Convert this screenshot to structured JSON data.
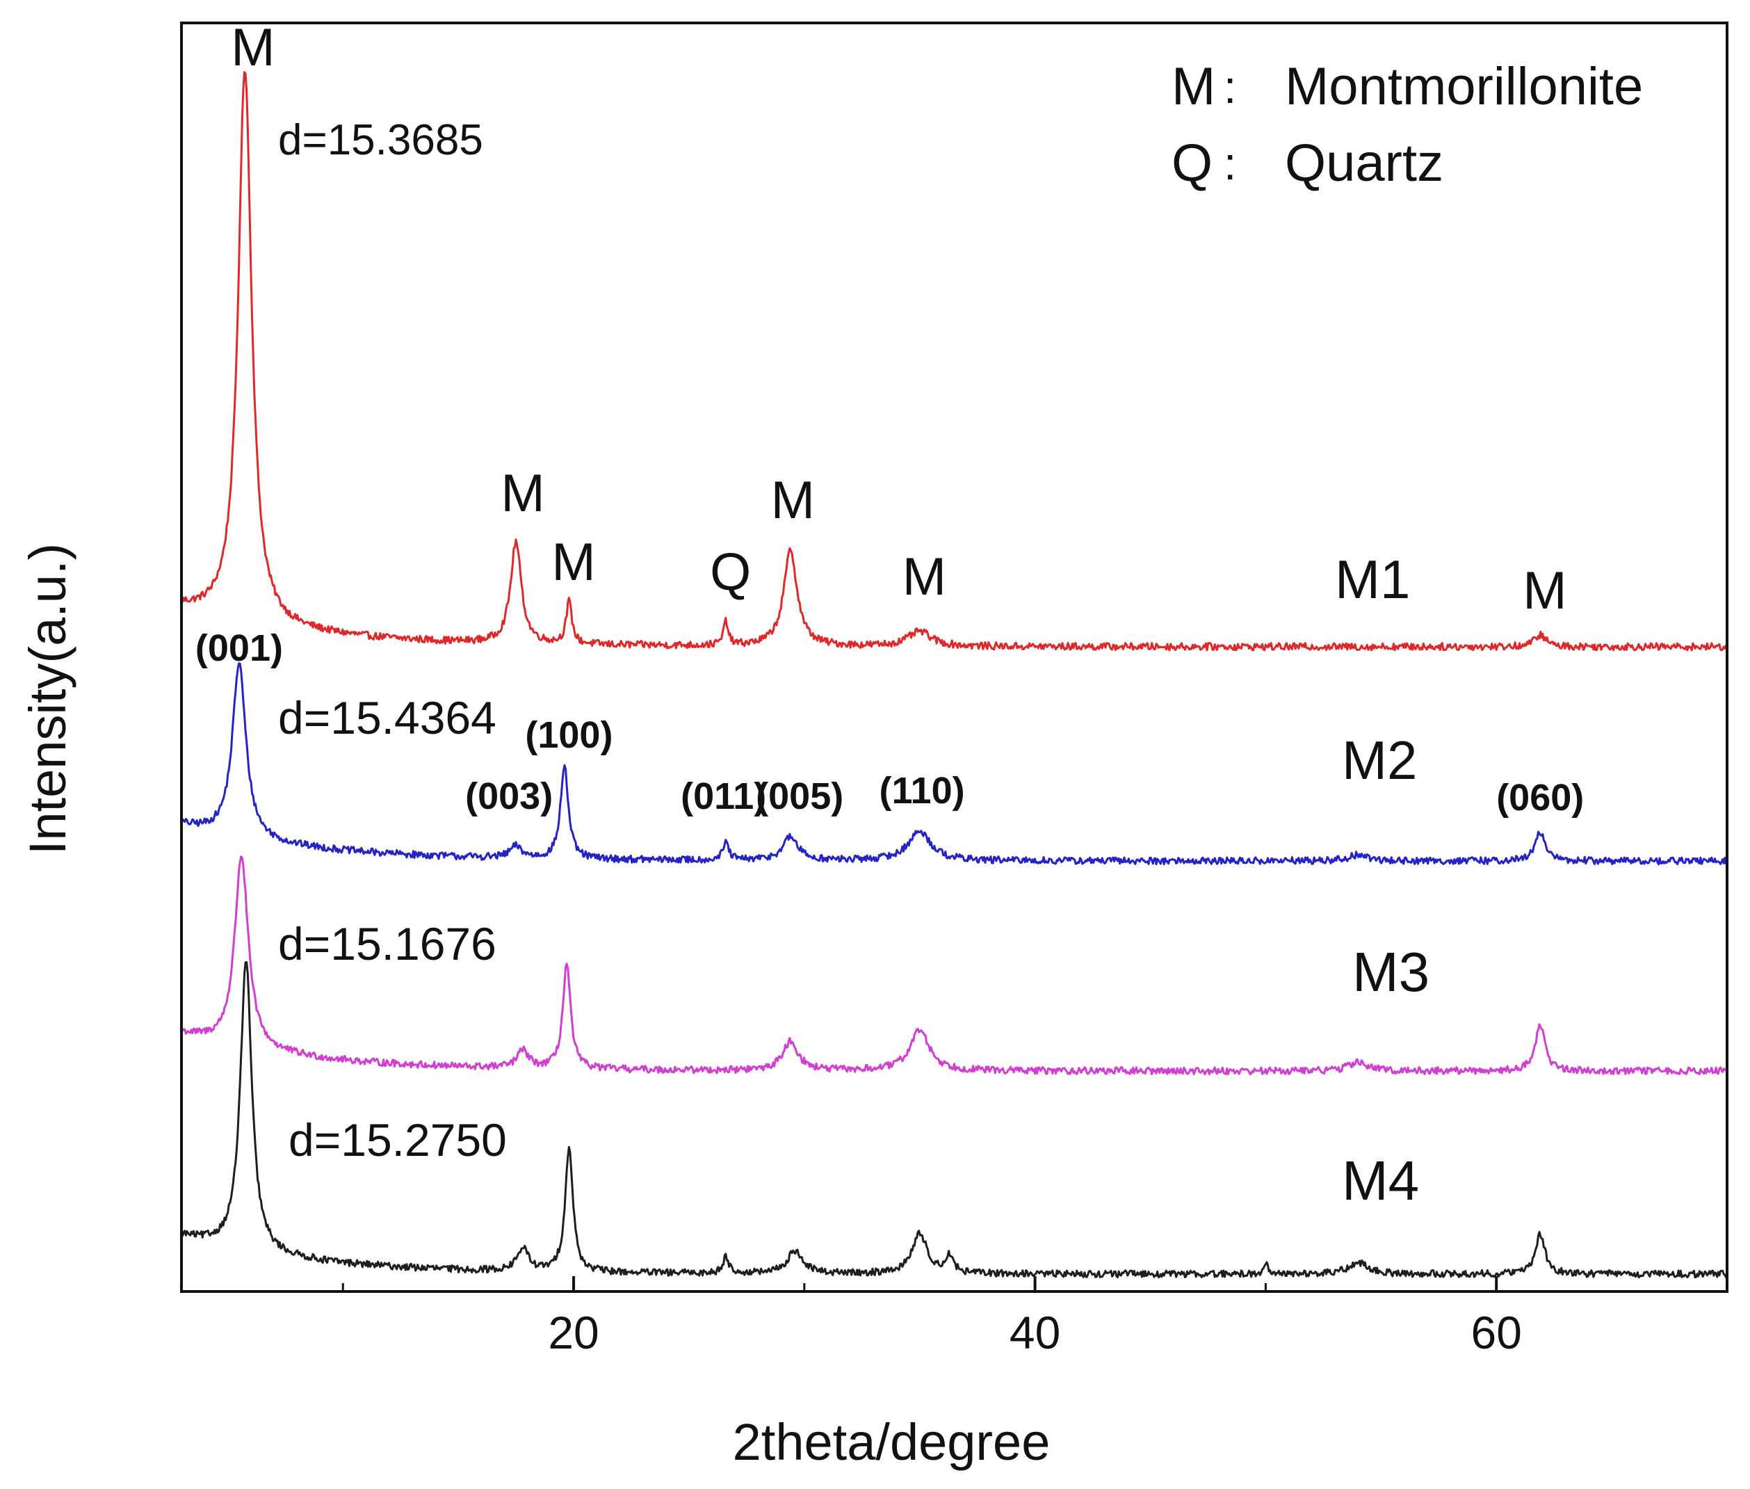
{
  "chart_data": {
    "type": "line",
    "title": "",
    "xlabel": "2theta/degree",
    "ylabel": "Intensity(a.u.)",
    "xlim": [
      3,
      70
    ],
    "x_ticks": [
      20,
      40,
      60
    ],
    "x_minor_ticks": [
      10,
      30,
      50
    ],
    "legend": {
      "placement": "top-right",
      "entries": [
        {
          "symbol": "M",
          "sep": ":",
          "name": "Montmorillonite"
        },
        {
          "symbol": "Q",
          "sep": ":",
          "name": "Quartz"
        }
      ]
    },
    "series": [
      {
        "name": "M1",
        "color": "#e0282a",
        "baseline": 0.07,
        "d_spacing": "d=15.3685",
        "peaks": [
          {
            "x": 5.75,
            "h": 0.93,
            "w": 0.35
          },
          {
            "x": 17.5,
            "h": 0.17,
            "w": 0.28
          },
          {
            "x": 19.8,
            "h": 0.07,
            "w": 0.15
          },
          {
            "x": 26.6,
            "h": 0.04,
            "w": 0.12
          },
          {
            "x": 29.4,
            "h": 0.16,
            "w": 0.35
          },
          {
            "x": 35.0,
            "h": 0.025,
            "w": 0.6
          },
          {
            "x": 61.9,
            "h": 0.02,
            "w": 0.3
          }
        ],
        "peak_labels": [
          {
            "text": "M",
            "x": 6.1
          },
          {
            "text": "M",
            "x": 17.8
          },
          {
            "text": "M",
            "x": 20.0
          },
          {
            "text": "Q",
            "x": 26.8
          },
          {
            "text": "M",
            "x": 29.5
          },
          {
            "text": "M",
            "x": 35.2
          },
          {
            "text": "M",
            "x": 62.1
          }
        ]
      },
      {
        "name": "M2",
        "color": "#2323c8",
        "baseline": 0.07,
        "d_spacing": "d=15.4364",
        "peaks": [
          {
            "x": 5.5,
            "h": 0.3,
            "w": 0.35
          },
          {
            "x": 17.5,
            "h": 0.02,
            "w": 0.3
          },
          {
            "x": 19.6,
            "h": 0.16,
            "w": 0.2
          },
          {
            "x": 26.6,
            "h": 0.03,
            "w": 0.15
          },
          {
            "x": 29.4,
            "h": 0.04,
            "w": 0.4
          },
          {
            "x": 35.0,
            "h": 0.05,
            "w": 0.6
          },
          {
            "x": 54.0,
            "h": 0.01,
            "w": 0.5
          },
          {
            "x": 61.9,
            "h": 0.05,
            "w": 0.25
          }
        ],
        "peak_labels": [
          {
            "text": "(001)",
            "x": 5.5
          },
          {
            "text": "(003)",
            "x": 17.2
          },
          {
            "text": "(100)",
            "x": 19.8
          },
          {
            "text": "(011)",
            "x": 26.5
          },
          {
            "text": "(005)",
            "x": 29.8
          },
          {
            "text": "(110)",
            "x": 35.1
          },
          {
            "text": "(060)",
            "x": 61.9
          }
        ]
      },
      {
        "name": "M3",
        "color": "#d23ed2",
        "baseline": 0.07,
        "d_spacing": "d=15.1676",
        "peaks": [
          {
            "x": 5.6,
            "h": 0.33,
            "w": 0.35
          },
          {
            "x": 17.8,
            "h": 0.03,
            "w": 0.3
          },
          {
            "x": 19.7,
            "h": 0.18,
            "w": 0.2
          },
          {
            "x": 29.4,
            "h": 0.05,
            "w": 0.4
          },
          {
            "x": 35.0,
            "h": 0.07,
            "w": 0.5
          },
          {
            "x": 54.0,
            "h": 0.015,
            "w": 0.5
          },
          {
            "x": 61.9,
            "h": 0.08,
            "w": 0.25
          }
        ]
      },
      {
        "name": "M4",
        "color": "#1e1e1e",
        "baseline": 0.07,
        "d_spacing": "d=15.2750",
        "peaks": [
          {
            "x": 5.8,
            "h": 0.51,
            "w": 0.3
          },
          {
            "x": 17.8,
            "h": 0.04,
            "w": 0.3
          },
          {
            "x": 19.8,
            "h": 0.22,
            "w": 0.2
          },
          {
            "x": 26.6,
            "h": 0.03,
            "w": 0.15
          },
          {
            "x": 29.6,
            "h": 0.04,
            "w": 0.4
          },
          {
            "x": 35.0,
            "h": 0.07,
            "w": 0.4
          },
          {
            "x": 36.3,
            "h": 0.03,
            "w": 0.2
          },
          {
            "x": 50.0,
            "h": 0.02,
            "w": 0.1
          },
          {
            "x": 54.0,
            "h": 0.02,
            "w": 0.5
          },
          {
            "x": 61.9,
            "h": 0.07,
            "w": 0.25
          }
        ]
      }
    ]
  }
}
